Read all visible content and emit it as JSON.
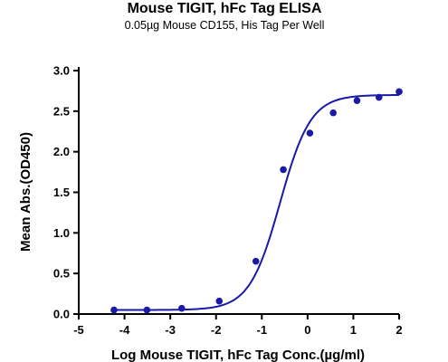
{
  "chart_data": {
    "type": "scatter",
    "title": "Mouse TIGIT, hFc Tag ELISA",
    "subtitle": "0.05µg Mouse CD155, His Tag Per Well",
    "xlabel": "Log Mouse TIGIT, hFc Tag Conc.(µg/ml)",
    "ylabel": "Mean Abs.(OD450)",
    "xlim": [
      -5,
      2
    ],
    "ylim": [
      0,
      3.0
    ],
    "x_ticks": [
      "-5",
      "-4",
      "-3",
      "-2",
      "-1",
      "0",
      "1",
      "2"
    ],
    "y_ticks": [
      "0.0",
      "0.5",
      "1.0",
      "1.5",
      "2.0",
      "2.5",
      "3.0"
    ],
    "grid": false,
    "colors": {
      "series": "#1a1aa6",
      "axis": "#000000"
    },
    "series": [
      {
        "x": [
          -4.23,
          -3.51,
          -2.75,
          -1.93,
          -1.13,
          -0.53,
          0.05,
          0.56,
          1.08,
          1.56,
          2.0
        ],
        "y": [
          0.05,
          0.05,
          0.07,
          0.16,
          0.65,
          1.78,
          2.23,
          2.48,
          2.63,
          2.67,
          2.74
        ],
        "fit": {
          "model": "4PL",
          "bottom": 0.05,
          "top": 2.7,
          "logEC50": -0.6,
          "hill": 1.3
        }
      }
    ]
  }
}
